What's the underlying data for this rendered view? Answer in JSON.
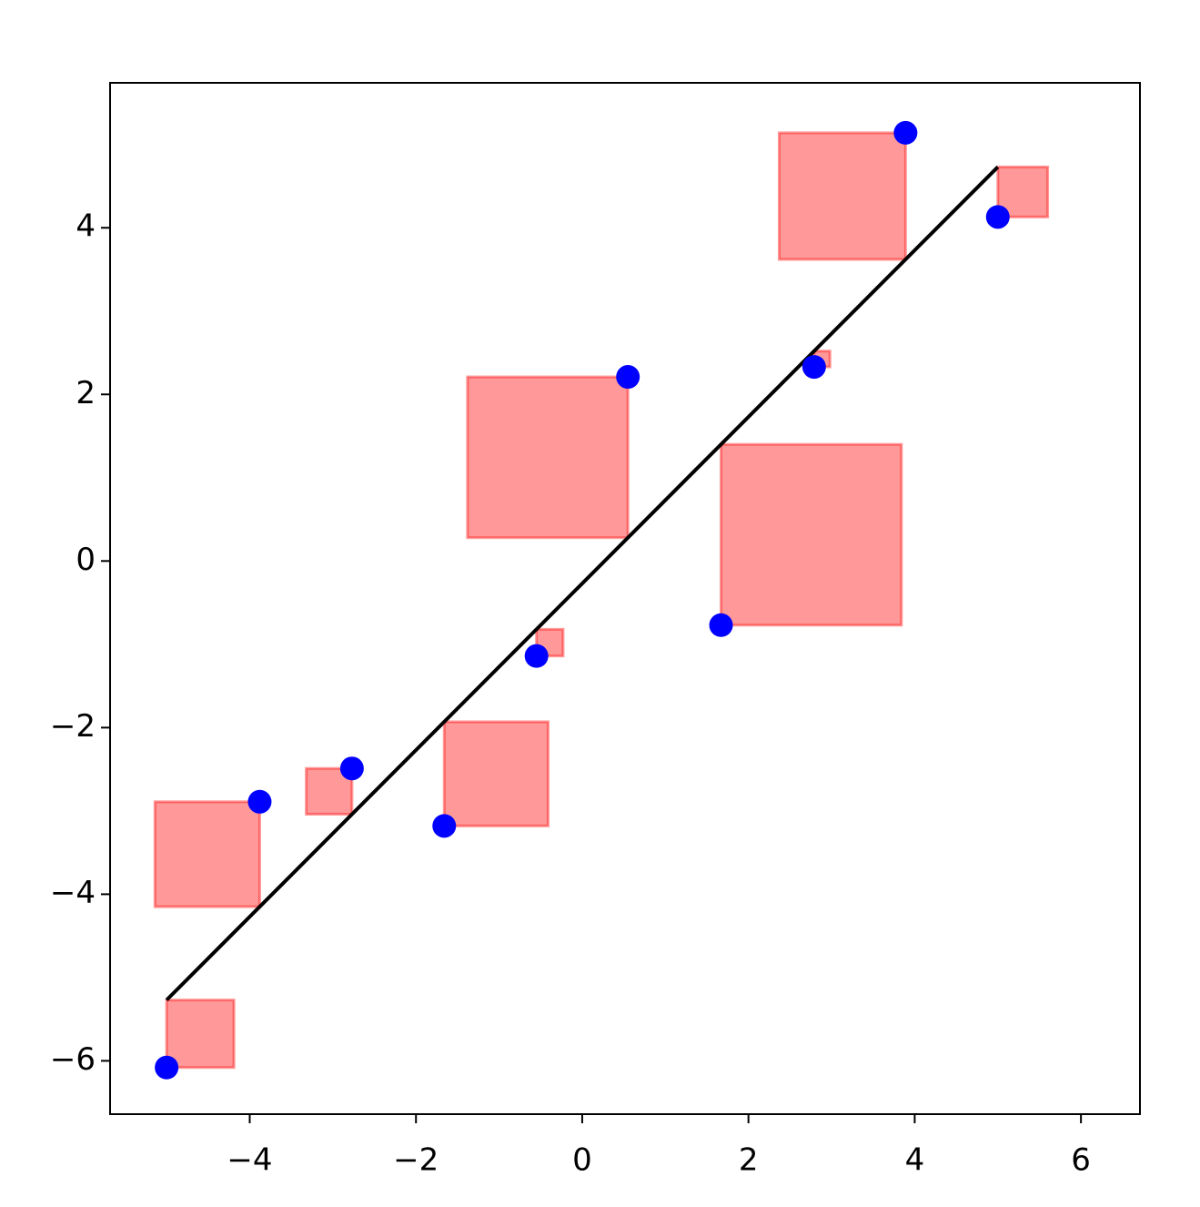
{
  "chart_data": {
    "type": "scatter",
    "x": [
      -5.0,
      -3.88,
      -2.77,
      -1.66,
      -0.55,
      0.55,
      1.67,
      2.79,
      3.89,
      5.0
    ],
    "values": [
      -6.08,
      -2.89,
      -2.49,
      -3.18,
      -1.14,
      2.21,
      -0.77,
      2.33,
      5.14,
      4.13
    ],
    "color": "blue",
    "fit_line": {
      "x": [
        -5.0,
        5.0
      ],
      "values": [
        -5.27,
        4.73
      ],
      "color": "black"
    },
    "residual_square_color": "red",
    "xlim": [
      -5.68,
      6.71
    ],
    "ylim": [
      -6.64,
      5.74
    ],
    "xticks": [
      {
        "value": -4,
        "label": "−4"
      },
      {
        "value": -2,
        "label": "−2"
      },
      0,
      2,
      4,
      6
    ],
    "yticks": [
      {
        "value": -6,
        "label": "−6"
      },
      {
        "value": -4,
        "label": "−4"
      },
      {
        "value": -2,
        "label": "−2"
      },
      0,
      2,
      4
    ],
    "grid": false
  }
}
